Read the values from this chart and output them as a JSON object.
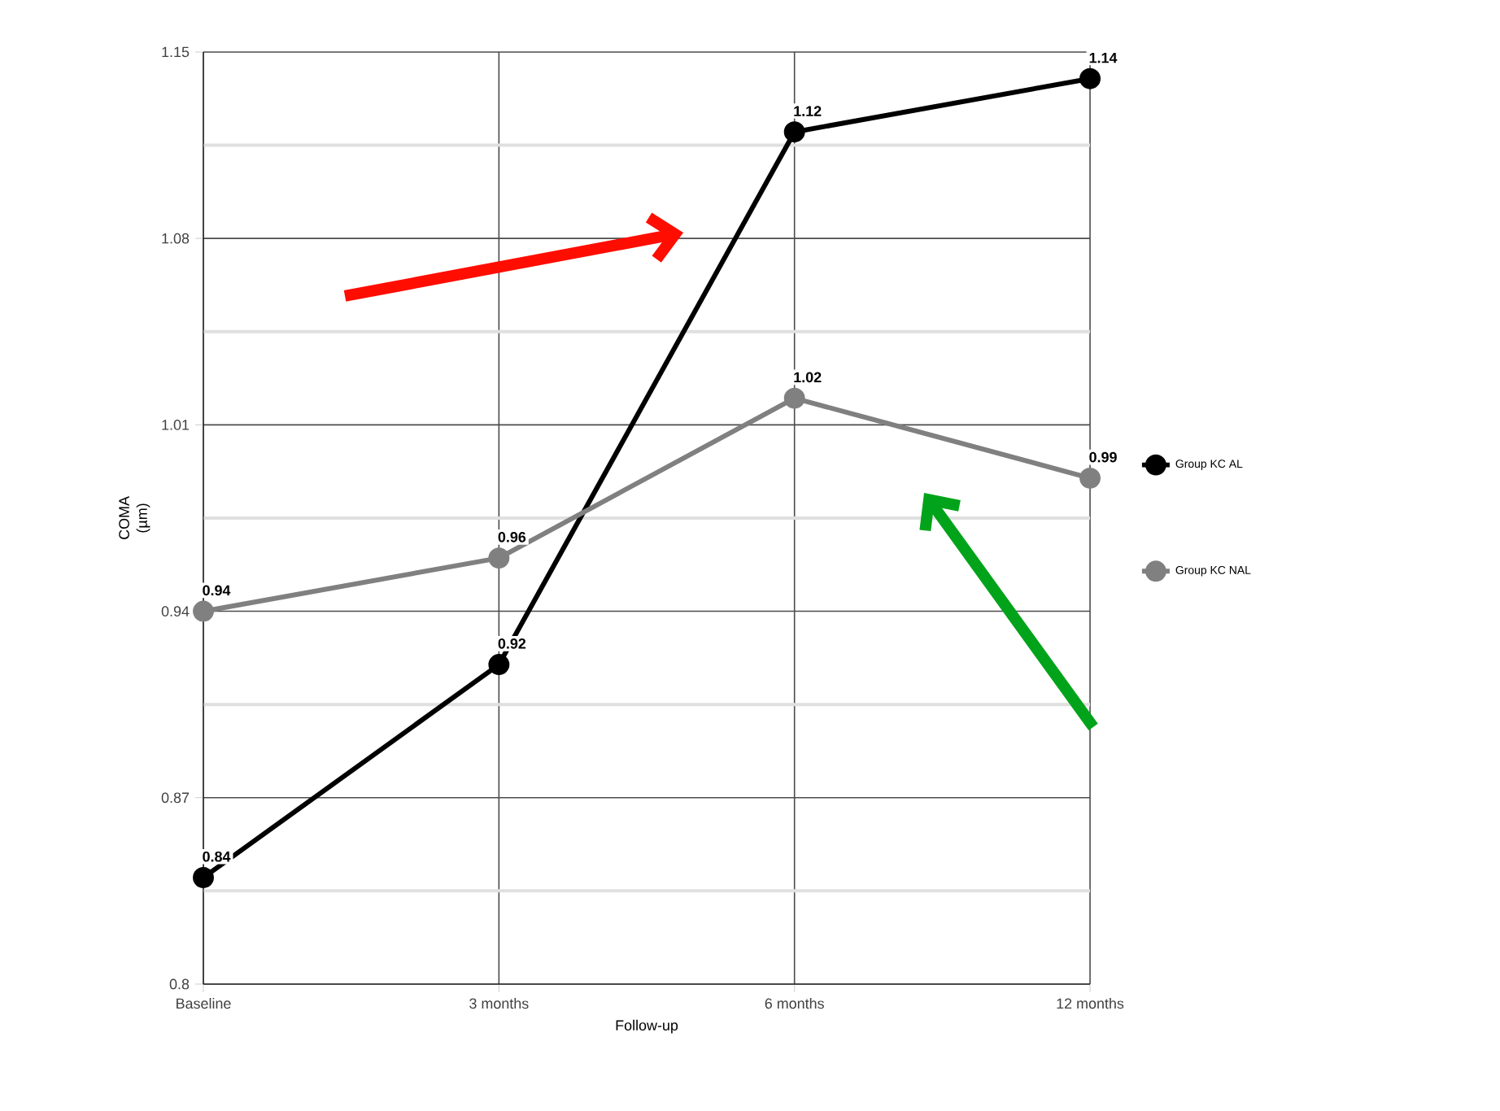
{
  "chart_data": {
    "type": "line",
    "xlabel": "Follow-up",
    "ylabel": "COMA (µm)",
    "categories": [
      "Baseline",
      "3 months",
      "6 months",
      "12 months"
    ],
    "series": [
      {
        "name": "Group KC AL",
        "color": "#000000",
        "values": [
          0.84,
          0.92,
          1.12,
          1.14
        ]
      },
      {
        "name": "Group KC NAL",
        "color": "#808080",
        "values": [
          0.94,
          0.96,
          1.02,
          0.99
        ]
      }
    ],
    "ylim": [
      0.8,
      1.15
    ],
    "yticks": [
      0.8,
      0.87,
      0.94,
      1.01,
      1.08,
      1.15
    ],
    "grid": true,
    "legend": "right",
    "marker": "circle",
    "line_style": "solid",
    "data_labels": true
  }
}
